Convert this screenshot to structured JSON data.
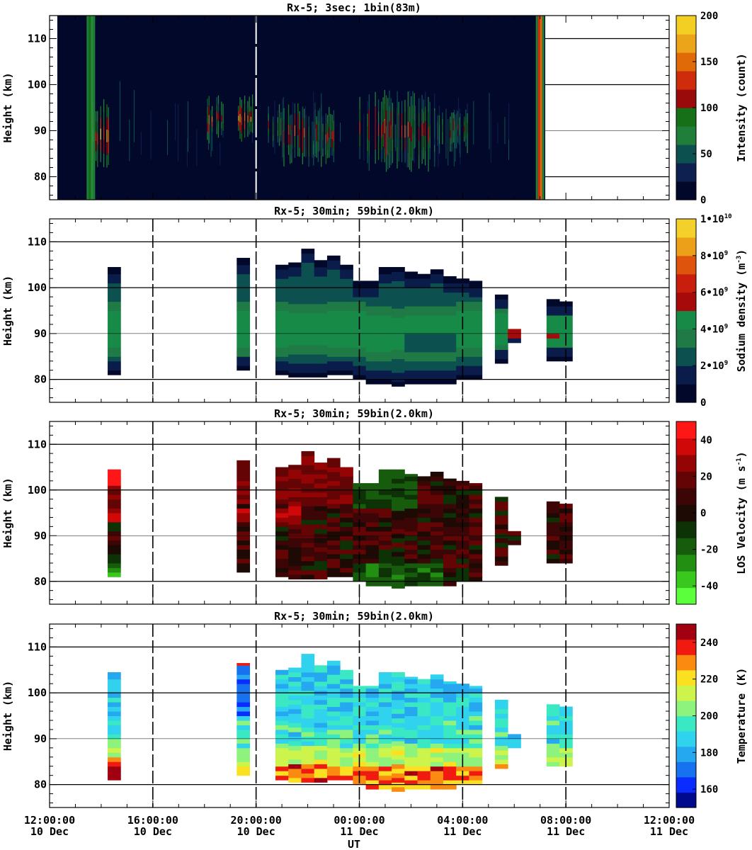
{
  "figure": {
    "xlabel": "UT"
  },
  "shared_x_ticks": [
    {
      "time": "12:00:00",
      "date": "10 Dec",
      "hour": 12
    },
    {
      "time": "16:00:00",
      "date": "10 Dec",
      "hour": 16
    },
    {
      "time": "20:00:00",
      "date": "10 Dec",
      "hour": 20
    },
    {
      "time": "00:00:00",
      "date": "11 Dec",
      "hour": 24
    },
    {
      "time": "04:00:00",
      "date": "11 Dec",
      "hour": 28
    },
    {
      "time": "08:00:00",
      "date": "11 Dec",
      "hour": 32
    },
    {
      "time": "12:00:00",
      "date": "11 Dec",
      "hour": 36
    }
  ],
  "chart_data": [
    {
      "type": "heatmap",
      "title": "Rx-5;  3sec; 1bin(83m)",
      "ylabel": "Height (km)",
      "ylim": [
        75,
        115
      ],
      "yticks": [
        80,
        90,
        100,
        110
      ],
      "xlim_hours": [
        12,
        36
      ],
      "data_coverage_hours": [
        12.4,
        31.2
      ],
      "colorbar": {
        "label": "Intensity (count)",
        "ticks": [
          "0",
          "50",
          "100",
          "150",
          "200"
        ],
        "range": [
          0,
          200
        ]
      },
      "bright_columns_hours": [
        13.6,
        31.0
      ],
      "patches": [
        {
          "t0": 13.6,
          "t1": 14.3,
          "h0": 81,
          "h1": 97,
          "level": 0.8
        },
        {
          "t0": 18.1,
          "t1": 18.8,
          "h0": 87,
          "h1": 98,
          "level": 0.6
        },
        {
          "t0": 19.3,
          "t1": 20.0,
          "h0": 87,
          "h1": 98,
          "level": 0.7
        },
        {
          "t0": 20.4,
          "t1": 21.0,
          "h0": 86,
          "h1": 96,
          "level": 0.35
        },
        {
          "t0": 21.0,
          "t1": 23.0,
          "h0": 82,
          "h1": 96,
          "level": 0.55
        },
        {
          "t0": 24.0,
          "t1": 26.9,
          "h0": 81,
          "h1": 99,
          "level": 0.55
        },
        {
          "t0": 26.9,
          "t1": 28.2,
          "h0": 85,
          "h1": 96,
          "level": 0.45
        }
      ]
    },
    {
      "type": "heatmap",
      "title": "Rx-5; 30min; 59bin(2.0km)",
      "ylabel": "Height (km)",
      "ylim": [
        75,
        115
      ],
      "yticks": [
        80,
        90,
        100,
        110
      ],
      "xlim_hours": [
        12,
        36
      ],
      "colorbar": {
        "label": "Sodium density (m^-3)",
        "ticks": [
          "0",
          "2•10^9",
          "4•10^9",
          "6•10^9",
          "8•10^9",
          "1•10^10"
        ],
        "range": [
          0,
          10
        ]
      },
      "blocks": [
        {
          "t": 14.5,
          "bot": 81,
          "top": 104.5
        },
        {
          "t": 19.5,
          "bot": 82,
          "top": 106.5
        },
        {
          "t": 21.0,
          "bot": 81,
          "top": 105
        },
        {
          "t": 21.5,
          "bot": 80.5,
          "top": 105.5
        },
        {
          "t": 22.0,
          "bot": 80.5,
          "top": 108.5
        },
        {
          "t": 22.5,
          "bot": 80.5,
          "top": 106
        },
        {
          "t": 23.0,
          "bot": 81,
          "top": 107
        },
        {
          "t": 23.5,
          "bot": 81,
          "top": 105
        },
        {
          "t": 24.0,
          "bot": 80,
          "top": 101.5
        },
        {
          "t": 24.5,
          "bot": 79,
          "top": 101.5
        },
        {
          "t": 25.0,
          "bot": 79,
          "top": 104.5
        },
        {
          "t": 25.5,
          "bot": 78.5,
          "top": 104.5
        },
        {
          "t": 26.0,
          "bot": 79,
          "top": 103.5
        },
        {
          "t": 26.5,
          "bot": 79,
          "top": 103
        },
        {
          "t": 27.0,
          "bot": 79,
          "top": 104
        },
        {
          "t": 27.5,
          "bot": 79,
          "top": 102.5
        },
        {
          "t": 28.0,
          "bot": 80,
          "top": 102
        },
        {
          "t": 28.5,
          "bot": 80,
          "top": 101.5
        },
        {
          "t": 29.5,
          "bot": 83.5,
          "top": 98.5
        },
        {
          "t": 30.0,
          "bot": 88,
          "top": 91
        },
        {
          "t": 31.5,
          "bot": 84,
          "top": 97.5
        },
        {
          "t": 32.0,
          "bot": 84,
          "top": 97
        }
      ]
    },
    {
      "type": "heatmap",
      "title": "Rx-5; 30min; 59bin(2.0km)",
      "ylabel": "Height (km)",
      "ylim": [
        75,
        115
      ],
      "yticks": [
        80,
        90,
        100,
        110
      ],
      "xlim_hours": [
        12,
        36
      ],
      "colorbar": {
        "label": "LOS Velocity (m s^-1)",
        "ticks": [
          "-40",
          "-20",
          "0",
          "20",
          "40"
        ],
        "range": [
          -50,
          50
        ]
      }
    },
    {
      "type": "heatmap",
      "title": "Rx-5; 30min; 59bin(2.0km)",
      "ylabel": "Height (km)",
      "ylim": [
        75,
        115
      ],
      "yticks": [
        80,
        90,
        100,
        110
      ],
      "xlim_hours": [
        12,
        36
      ],
      "colorbar": {
        "label": "Temperature (K)",
        "ticks": [
          "160",
          "180",
          "200",
          "220",
          "240"
        ],
        "range": [
          150,
          250
        ]
      }
    }
  ]
}
